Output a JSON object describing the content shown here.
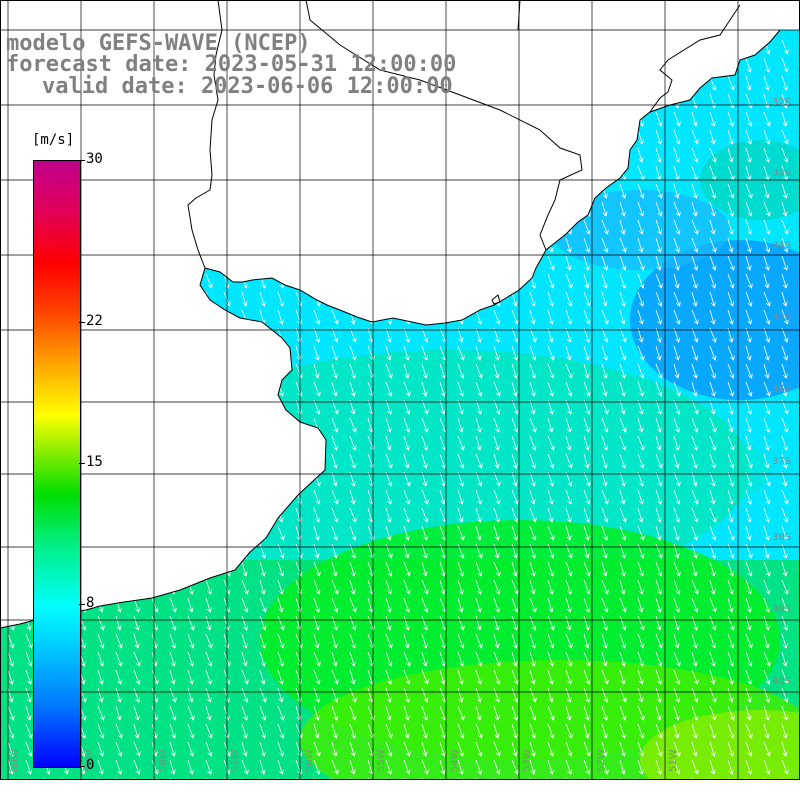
{
  "title": {
    "line1": "modelo GEFS-WAVE (NCEP)",
    "line2": "forecast date: 2023-05-31 12:00:00",
    "line3": "valid date: 2023-06-06 12:00:00"
  },
  "colorbar": {
    "units": "[m/s]",
    "ticks": [
      {
        "value": 0,
        "label": "0"
      },
      {
        "value": 8,
        "label": "8"
      },
      {
        "value": 15,
        "label": "15"
      },
      {
        "value": 22,
        "label": "22"
      },
      {
        "value": 30,
        "label": "30"
      }
    ],
    "range": [
      0,
      30
    ]
  },
  "map": {
    "lat_labels": [
      "32S",
      "33S",
      "34S",
      "35S",
      "36S",
      "37S",
      "38S",
      "39S",
      "40S"
    ],
    "lon_labels": [
      "60W",
      "59W",
      "58W",
      "57W",
      "56W",
      "55W",
      "54W",
      "53W",
      "52W",
      "51W"
    ],
    "wind_direction": "toward south-southwest",
    "field_colors": {
      "cyan": "#00e8ff",
      "blue": "#0aa0ff",
      "green": "#00ee33",
      "lime": "#66ee00"
    }
  }
}
